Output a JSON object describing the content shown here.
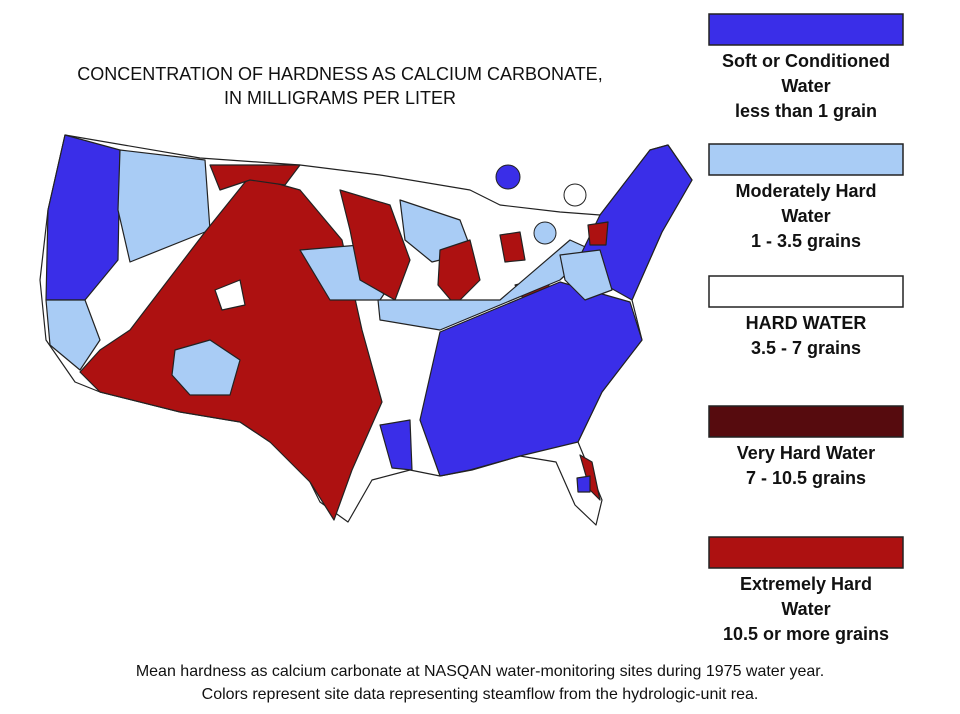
{
  "title": [
    "CONCENTRATION OF HARDNESS AS CALCIUM CARBONATE,",
    "IN MILLIGRAMS PER LITER"
  ],
  "legend": [
    {
      "color": "#3a2ee8",
      "label": [
        "Soft or Conditioned",
        "Water",
        "less than 1 grain"
      ]
    },
    {
      "color": "#a9ccf5",
      "label": [
        "Moderately Hard",
        "Water",
        "1 - 3.5 grains"
      ]
    },
    {
      "color": "#ffffff",
      "label": [
        "HARD WATER",
        "3.5 - 7 grains"
      ]
    },
    {
      "color": "#560b0e",
      "label": [
        "Very Hard Water",
        "7 - 10.5 grains"
      ]
    },
    {
      "color": "#ad1111",
      "label": [
        "Extremely Hard",
        "Water",
        "10.5 or more grains"
      ]
    }
  ],
  "caption": [
    "Mean hardness as calcium carbonate at NASQAN water-monitoring sites during 1975 water year.",
    "Colors represent site data representing steamflow from the hydrologic-unit rea."
  ]
}
